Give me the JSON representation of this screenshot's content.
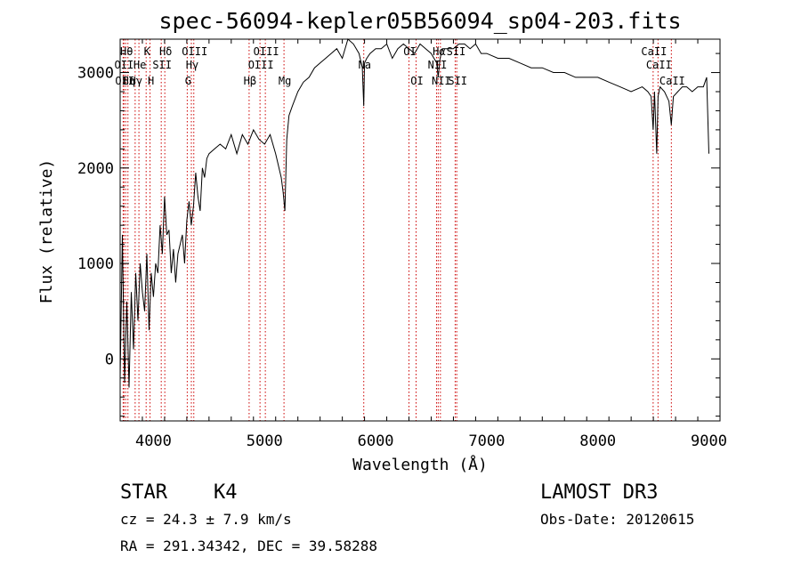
{
  "chart_data": {
    "type": "line",
    "title": "spec-56094-kepler05B56094_sp04-203.fits",
    "xlabel": "Wavelength (Å)",
    "ylabel": "Flux (relative)",
    "xlim": [
      3700,
      9100
    ],
    "ylim": [
      -650,
      3350
    ],
    "xticks": [
      4000,
      5000,
      6000,
      7000,
      8000,
      9000
    ],
    "yticks": [
      0,
      1000,
      2000,
      3000
    ],
    "series": [
      {
        "name": "flux",
        "x": [
          3700,
          3720,
          3740,
          3760,
          3780,
          3800,
          3820,
          3840,
          3860,
          3880,
          3900,
          3920,
          3940,
          3960,
          3980,
          4000,
          4020,
          4040,
          4060,
          4080,
          4100,
          4120,
          4140,
          4160,
          4180,
          4200,
          4220,
          4240,
          4260,
          4280,
          4300,
          4320,
          4340,
          4360,
          4380,
          4400,
          4420,
          4440,
          4460,
          4480,
          4500,
          4550,
          4600,
          4650,
          4700,
          4750,
          4800,
          4850,
          4900,
          4950,
          5000,
          5050,
          5100,
          5150,
          5167,
          5183,
          5200,
          5220,
          5250,
          5300,
          5350,
          5400,
          5450,
          5500,
          5550,
          5600,
          5650,
          5700,
          5750,
          5800,
          5850,
          5880,
          5893,
          5900,
          5920,
          5950,
          6000,
          6050,
          6100,
          6150,
          6200,
          6250,
          6300,
          6350,
          6400,
          6450,
          6500,
          6550,
          6563,
          6580,
          6600,
          6650,
          6700,
          6750,
          6800,
          6850,
          6900,
          6950,
          7000,
          7100,
          7200,
          7300,
          7400,
          7500,
          7600,
          7700,
          7800,
          7900,
          8000,
          8100,
          8200,
          8300,
          8400,
          8450,
          8480,
          8498,
          8510,
          8530,
          8542,
          8560,
          8600,
          8640,
          8662,
          8680,
          8720,
          8760,
          8800,
          8850,
          8900,
          8950,
          8980,
          9000
        ],
        "y": [
          -200,
          1300,
          -250,
          600,
          -300,
          700,
          100,
          900,
          400,
          1000,
          700,
          500,
          1100,
          300,
          900,
          650,
          1000,
          900,
          1400,
          1100,
          1700,
          1300,
          1350,
          900,
          1150,
          800,
          1100,
          1200,
          1300,
          1000,
          1450,
          1650,
          1400,
          1600,
          1950,
          1700,
          1550,
          2000,
          1900,
          2100,
          2150,
          2200,
          2250,
          2200,
          2350,
          2150,
          2350,
          2250,
          2400,
          2300,
          2250,
          2350,
          2150,
          1900,
          1750,
          1550,
          2300,
          2550,
          2650,
          2800,
          2900,
          2950,
          3050,
          3100,
          3150,
          3200,
          3250,
          3150,
          3350,
          3300,
          3200,
          3050,
          2650,
          3100,
          3150,
          3200,
          3250,
          3250,
          3300,
          3150,
          3250,
          3300,
          3250,
          3200,
          3300,
          3250,
          3200,
          3100,
          2950,
          3150,
          3250,
          3250,
          3250,
          3300,
          3300,
          3250,
          3300,
          3200,
          3200,
          3150,
          3150,
          3100,
          3050,
          3050,
          3000,
          3000,
          2950,
          2950,
          2950,
          2900,
          2850,
          2800,
          2850,
          2800,
          2750,
          2400,
          2800,
          2150,
          2750,
          2850,
          2800,
          2700,
          2450,
          2750,
          2800,
          2850,
          2850,
          2800,
          2850,
          2850,
          2950,
          2150
        ]
      }
    ],
    "lines": [
      {
        "x": 3727,
        "label": "OII",
        "row": 2
      },
      {
        "x": 3734,
        "label": "OII",
        "row": 3
      },
      {
        "x": 3750,
        "label": "Hθ",
        "row": 1
      },
      {
        "x": 3770,
        "label": "Hη",
        "row": 3
      },
      {
        "x": 3835,
        "label": "Hγ",
        "row": 3
      },
      {
        "x": 3869,
        "label": "He",
        "row": 2
      },
      {
        "x": 3934,
        "label": "K",
        "row": 1
      },
      {
        "x": 3969,
        "label": "H",
        "row": 3
      },
      {
        "x": 4070,
        "label": "SII",
        "row": 2
      },
      {
        "x": 4102,
        "label": "Hδ",
        "row": 1
      },
      {
        "x": 4304,
        "label": "G",
        "row": 3
      },
      {
        "x": 4341,
        "label": "Hγ",
        "row": 2
      },
      {
        "x": 4363,
        "label": "OIII",
        "row": 1
      },
      {
        "x": 4861,
        "label": "Hβ",
        "row": 3
      },
      {
        "x": 4959,
        "label": "OIII",
        "row": 2
      },
      {
        "x": 5007,
        "label": "OIII",
        "row": 1
      },
      {
        "x": 5175,
        "label": "Mg",
        "row": 3
      },
      {
        "x": 5893,
        "label": "Na",
        "row": 2
      },
      {
        "x": 6300,
        "label": "OI",
        "row": 1
      },
      {
        "x": 6364,
        "label": "OI",
        "row": 3
      },
      {
        "x": 6548,
        "label": "NII",
        "row": 2
      },
      {
        "x": 6563,
        "label": "Hα",
        "row": 1
      },
      {
        "x": 6583,
        "label": "NII",
        "row": 3
      },
      {
        "x": 6716,
        "label": "SII",
        "row": 1
      },
      {
        "x": 6730,
        "label": "SII",
        "row": 3
      },
      {
        "x": 8498,
        "label": "CaII",
        "row": 1
      },
      {
        "x": 8542,
        "label": "CaII",
        "row": 2
      },
      {
        "x": 8662,
        "label": "CaII",
        "row": 3
      }
    ],
    "line_color": "#cc0000"
  },
  "footer": {
    "class": "STAR",
    "subclass": "K4",
    "survey": "LAMOST DR3",
    "cz": "cz = 24.3 ± 7.9 km/s",
    "obs_date": "Obs-Date: 20120615",
    "coords": "RA = 291.34342, DEC =  39.58288"
  }
}
